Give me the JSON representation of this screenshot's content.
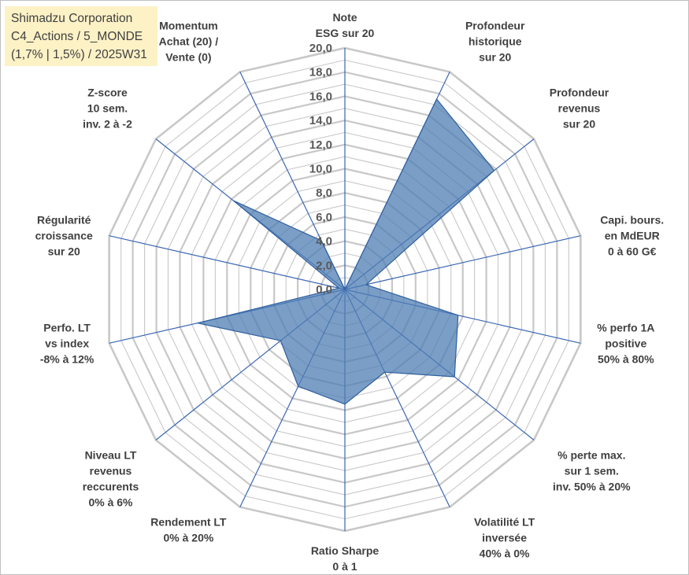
{
  "title_lines": [
    "Shimadzu Corporation",
    "C4_Actions / 5_MONDE",
    "(1,7% | 1,5%) / 2025W31"
  ],
  "chart_data": {
    "type": "radar",
    "title": "Shimadzu Corporation C4_Actions / 5_MONDE (1,7% | 1,5%) / 2025W31",
    "rlim": [
      0,
      20
    ],
    "tick_step": 2,
    "tick_labels": [
      "0,0",
      "2,0",
      "4,0",
      "6,0",
      "8,0",
      "10,0",
      "12,0",
      "14,0",
      "16,0",
      "18,0",
      "20,0"
    ],
    "grid": true,
    "categories": [
      [
        "Note",
        "ESG sur 20"
      ],
      [
        "Profondeur",
        "historique",
        "sur 20"
      ],
      [
        "Profondeur",
        "revenus",
        "sur 20"
      ],
      [
        "Capi. bours.",
        "en MdEUR",
        "0 à 60 G€"
      ],
      [
        "% perfo 1A",
        "positive",
        "50% à 80%"
      ],
      [
        "% perte max.",
        "sur 1 sem.",
        "inv. 50% à 20%"
      ],
      [
        "Volatilité LT",
        "inversée",
        "40% à 0%"
      ],
      [
        "Ratio Sharpe",
        "0 à 1"
      ],
      [
        "Rendement LT",
        "0% à 20%"
      ],
      [
        "Niveau LT",
        "revenus",
        "reccurents",
        "0% à 6%"
      ],
      [
        "Perfo. LT",
        "vs index",
        "-8% à 12%"
      ],
      [
        "Régularité",
        "croissance",
        "sur 20"
      ],
      [
        "Z-score",
        "10 sem.",
        "inv. 2 à -2"
      ],
      [
        "Momentum",
        "Achat (20) /",
        "Vente (0)"
      ]
    ],
    "series": [
      {
        "values": [
          0,
          17.5,
          15.8,
          1.8,
          9.6,
          11.6,
          7.6,
          9.5,
          8.9,
          6.8,
          12.5,
          0.5,
          11.8,
          4.5
        ]
      }
    ],
    "colors": {
      "fill": "#4f7db4",
      "fill_opacity": 0.75,
      "stroke": "#2f5f9e",
      "spoke": "#3a66b2",
      "grid": "#c8c8c8"
    }
  }
}
